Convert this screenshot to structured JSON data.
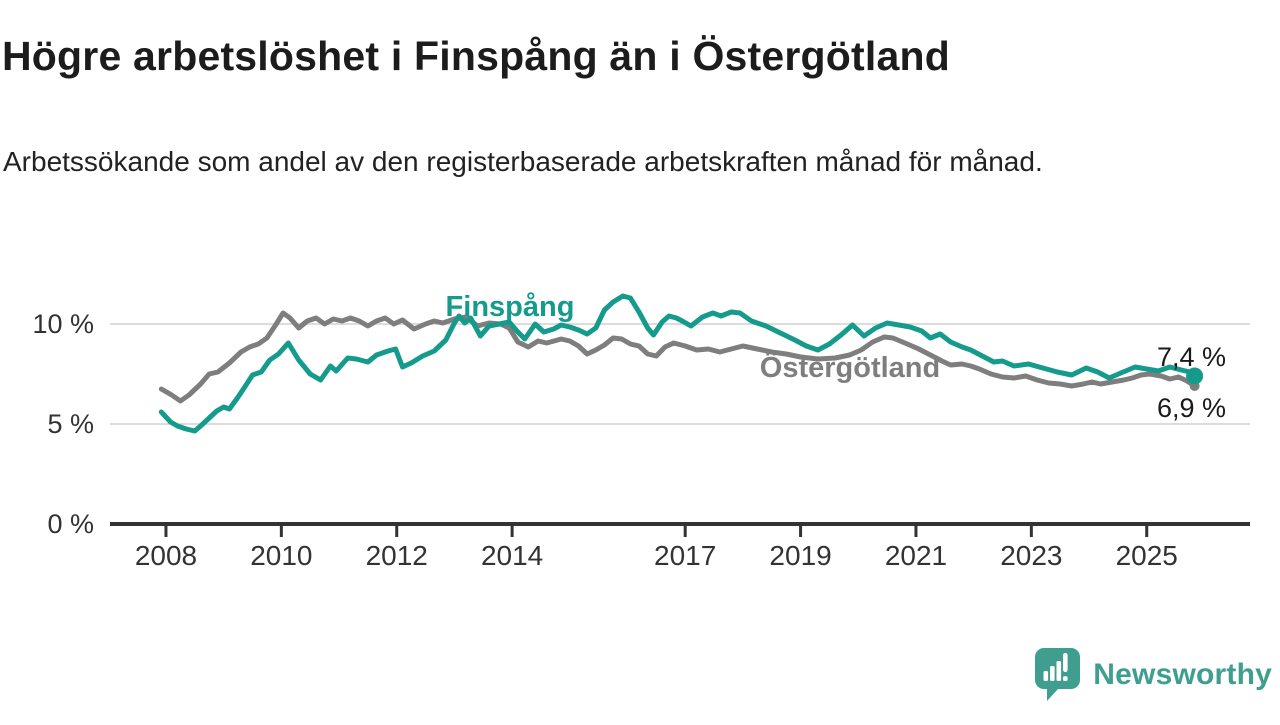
{
  "header": {
    "title": "Högre arbetslöshet i Finspång än i Östergötland",
    "subtitle": "Arbetssökande som andel av den registerbaserade arbetskraften månad för månad."
  },
  "footer": {
    "brand": "Newsworthy"
  },
  "chart_data": {
    "type": "line",
    "title": "Högre arbetslöshet i Finspång än i Östergötland",
    "subtitle": "Arbetssökande som andel av den registerbaserade arbetskraften månad för månad.",
    "x_unit": "year (decimal years, monthly observations)",
    "y_unit": "percent of registered labour force",
    "xlim": [
      2007.03,
      2026.79
    ],
    "ylim": [
      0,
      12.75
    ],
    "grid": "horizontal",
    "legend_position": "inline-labels",
    "colors": {
      "background": "#ffffff",
      "axis": "#333333",
      "grid": "#dcdcdc",
      "tick_text": "#333333",
      "value_text": "#1a1a1a",
      "accent_teal": "#149b8c",
      "neutral_gray": "#7e7e7e",
      "logo_teal": "#3f9e90"
    },
    "yticks": [
      {
        "value": 0,
        "label": "0 %"
      },
      {
        "value": 5,
        "label": "5 %"
      },
      {
        "value": 10,
        "label": "10 %"
      }
    ],
    "xticks": [
      {
        "value": 2008,
        "label": "2008"
      },
      {
        "value": 2010,
        "label": "2010"
      },
      {
        "value": 2012,
        "label": "2012"
      },
      {
        "value": 2014,
        "label": "2014"
      },
      {
        "value": 2017,
        "label": "2017"
      },
      {
        "value": 2019,
        "label": "2019"
      },
      {
        "value": 2021,
        "label": "2021"
      },
      {
        "value": 2023,
        "label": "2023"
      },
      {
        "value": 2025,
        "label": "2025"
      }
    ],
    "series": [
      {
        "name": "Östergötland",
        "color": "#7e7e7e",
        "line_width": 5,
        "end_value": 6.9,
        "end_label": "6,9 %",
        "end_dot_radius": 5,
        "points": [
          [
            2007.92,
            6.75
          ],
          [
            2008.1,
            6.45
          ],
          [
            2008.25,
            6.15
          ],
          [
            2008.4,
            6.45
          ],
          [
            2008.6,
            7.0
          ],
          [
            2008.75,
            7.5
          ],
          [
            2008.9,
            7.6
          ],
          [
            2009.1,
            8.05
          ],
          [
            2009.3,
            8.6
          ],
          [
            2009.45,
            8.85
          ],
          [
            2009.6,
            9.0
          ],
          [
            2009.75,
            9.3
          ],
          [
            2009.9,
            9.95
          ],
          [
            2010.03,
            10.55
          ],
          [
            2010.15,
            10.3
          ],
          [
            2010.3,
            9.8
          ],
          [
            2010.45,
            10.15
          ],
          [
            2010.6,
            10.3
          ],
          [
            2010.75,
            10.0
          ],
          [
            2010.9,
            10.25
          ],
          [
            2011.05,
            10.15
          ],
          [
            2011.2,
            10.3
          ],
          [
            2011.35,
            10.15
          ],
          [
            2011.5,
            9.9
          ],
          [
            2011.65,
            10.15
          ],
          [
            2011.8,
            10.3
          ],
          [
            2011.95,
            10.0
          ],
          [
            2012.1,
            10.2
          ],
          [
            2012.3,
            9.75
          ],
          [
            2012.5,
            10.0
          ],
          [
            2012.65,
            10.15
          ],
          [
            2012.8,
            10.05
          ],
          [
            2013.0,
            10.25
          ],
          [
            2013.2,
            10.35
          ],
          [
            2013.4,
            9.9
          ],
          [
            2013.6,
            10.05
          ],
          [
            2013.8,
            10.0
          ],
          [
            2013.95,
            9.8
          ],
          [
            2014.1,
            9.1
          ],
          [
            2014.28,
            8.85
          ],
          [
            2014.45,
            9.15
          ],
          [
            2014.6,
            9.05
          ],
          [
            2014.85,
            9.25
          ],
          [
            2015.0,
            9.15
          ],
          [
            2015.15,
            8.9
          ],
          [
            2015.3,
            8.5
          ],
          [
            2015.45,
            8.7
          ],
          [
            2015.6,
            8.95
          ],
          [
            2015.75,
            9.3
          ],
          [
            2015.9,
            9.25
          ],
          [
            2016.05,
            9.0
          ],
          [
            2016.2,
            8.9
          ],
          [
            2016.35,
            8.5
          ],
          [
            2016.5,
            8.4
          ],
          [
            2016.65,
            8.85
          ],
          [
            2016.8,
            9.05
          ],
          [
            2017.0,
            8.9
          ],
          [
            2017.2,
            8.7
          ],
          [
            2017.4,
            8.75
          ],
          [
            2017.6,
            8.6
          ],
          [
            2017.8,
            8.75
          ],
          [
            2018.0,
            8.9
          ],
          [
            2018.25,
            8.75
          ],
          [
            2018.5,
            8.6
          ],
          [
            2018.75,
            8.5
          ],
          [
            2019.0,
            8.35
          ],
          [
            2019.3,
            8.25
          ],
          [
            2019.6,
            8.3
          ],
          [
            2019.85,
            8.45
          ],
          [
            2020.05,
            8.7
          ],
          [
            2020.25,
            9.1
          ],
          [
            2020.45,
            9.35
          ],
          [
            2020.6,
            9.3
          ],
          [
            2020.85,
            9.0
          ],
          [
            2021.05,
            8.75
          ],
          [
            2021.25,
            8.45
          ],
          [
            2021.45,
            8.15
          ],
          [
            2021.6,
            7.95
          ],
          [
            2021.8,
            8.0
          ],
          [
            2021.95,
            7.9
          ],
          [
            2022.1,
            7.75
          ],
          [
            2022.3,
            7.5
          ],
          [
            2022.5,
            7.35
          ],
          [
            2022.7,
            7.3
          ],
          [
            2022.9,
            7.4
          ],
          [
            2023.1,
            7.2
          ],
          [
            2023.3,
            7.05
          ],
          [
            2023.5,
            7.0
          ],
          [
            2023.7,
            6.9
          ],
          [
            2023.9,
            7.0
          ],
          [
            2024.05,
            7.1
          ],
          [
            2024.2,
            7.0
          ],
          [
            2024.4,
            7.1
          ],
          [
            2024.6,
            7.2
          ],
          [
            2024.75,
            7.3
          ],
          [
            2024.9,
            7.45
          ],
          [
            2025.05,
            7.5
          ],
          [
            2025.25,
            7.4
          ],
          [
            2025.4,
            7.25
          ],
          [
            2025.55,
            7.35
          ],
          [
            2025.7,
            7.15
          ],
          [
            2025.83,
            6.9
          ]
        ]
      },
      {
        "name": "Finspång",
        "color": "#149b8c",
        "line_width": 5,
        "end_value": 7.4,
        "end_label": "7,4 %",
        "end_dot_radius": 8.5,
        "points": [
          [
            2007.92,
            5.6
          ],
          [
            2008.08,
            5.1
          ],
          [
            2008.2,
            4.9
          ],
          [
            2008.35,
            4.75
          ],
          [
            2008.5,
            4.65
          ],
          [
            2008.62,
            4.95
          ],
          [
            2008.75,
            5.3
          ],
          [
            2008.88,
            5.65
          ],
          [
            2009.0,
            5.85
          ],
          [
            2009.1,
            5.75
          ],
          [
            2009.25,
            6.35
          ],
          [
            2009.4,
            7.0
          ],
          [
            2009.5,
            7.45
          ],
          [
            2009.65,
            7.6
          ],
          [
            2009.8,
            8.2
          ],
          [
            2009.95,
            8.5
          ],
          [
            2010.12,
            9.05
          ],
          [
            2010.3,
            8.2
          ],
          [
            2010.5,
            7.5
          ],
          [
            2010.68,
            7.2
          ],
          [
            2010.85,
            7.9
          ],
          [
            2010.95,
            7.65
          ],
          [
            2011.15,
            8.3
          ],
          [
            2011.3,
            8.25
          ],
          [
            2011.5,
            8.1
          ],
          [
            2011.65,
            8.45
          ],
          [
            2011.85,
            8.65
          ],
          [
            2011.98,
            8.75
          ],
          [
            2012.1,
            7.85
          ],
          [
            2012.25,
            8.05
          ],
          [
            2012.45,
            8.4
          ],
          [
            2012.65,
            8.65
          ],
          [
            2012.85,
            9.2
          ],
          [
            2013.0,
            10.05
          ],
          [
            2013.08,
            10.4
          ],
          [
            2013.18,
            10.05
          ],
          [
            2013.28,
            10.3
          ],
          [
            2013.45,
            9.4
          ],
          [
            2013.6,
            9.9
          ],
          [
            2013.78,
            10.0
          ],
          [
            2013.95,
            10.1
          ],
          [
            2014.1,
            9.6
          ],
          [
            2014.22,
            9.25
          ],
          [
            2014.4,
            10.0
          ],
          [
            2014.55,
            9.6
          ],
          [
            2014.72,
            9.75
          ],
          [
            2014.85,
            9.95
          ],
          [
            2015.0,
            9.85
          ],
          [
            2015.15,
            9.7
          ],
          [
            2015.3,
            9.5
          ],
          [
            2015.45,
            9.8
          ],
          [
            2015.6,
            10.7
          ],
          [
            2015.75,
            11.1
          ],
          [
            2015.92,
            11.4
          ],
          [
            2016.05,
            11.3
          ],
          [
            2016.2,
            10.6
          ],
          [
            2016.35,
            9.8
          ],
          [
            2016.45,
            9.45
          ],
          [
            2016.6,
            10.1
          ],
          [
            2016.72,
            10.4
          ],
          [
            2016.85,
            10.3
          ],
          [
            2016.98,
            10.1
          ],
          [
            2017.1,
            9.9
          ],
          [
            2017.3,
            10.35
          ],
          [
            2017.48,
            10.55
          ],
          [
            2017.62,
            10.4
          ],
          [
            2017.8,
            10.6
          ],
          [
            2017.95,
            10.55
          ],
          [
            2018.15,
            10.15
          ],
          [
            2018.4,
            9.9
          ],
          [
            2018.65,
            9.55
          ],
          [
            2018.9,
            9.2
          ],
          [
            2019.1,
            8.9
          ],
          [
            2019.3,
            8.7
          ],
          [
            2019.5,
            9.0
          ],
          [
            2019.7,
            9.45
          ],
          [
            2019.9,
            9.95
          ],
          [
            2020.1,
            9.4
          ],
          [
            2020.3,
            9.8
          ],
          [
            2020.5,
            10.05
          ],
          [
            2020.7,
            9.95
          ],
          [
            2020.9,
            9.85
          ],
          [
            2021.1,
            9.65
          ],
          [
            2021.25,
            9.3
          ],
          [
            2021.42,
            9.5
          ],
          [
            2021.6,
            9.1
          ],
          [
            2021.8,
            8.85
          ],
          [
            2021.95,
            8.7
          ],
          [
            2022.15,
            8.4
          ],
          [
            2022.35,
            8.1
          ],
          [
            2022.5,
            8.15
          ],
          [
            2022.7,
            7.9
          ],
          [
            2022.95,
            8.0
          ],
          [
            2023.2,
            7.8
          ],
          [
            2023.45,
            7.6
          ],
          [
            2023.7,
            7.45
          ],
          [
            2023.95,
            7.8
          ],
          [
            2024.15,
            7.6
          ],
          [
            2024.35,
            7.3
          ],
          [
            2024.55,
            7.55
          ],
          [
            2024.8,
            7.85
          ],
          [
            2025.0,
            7.75
          ],
          [
            2025.2,
            7.65
          ],
          [
            2025.4,
            7.85
          ],
          [
            2025.6,
            7.7
          ],
          [
            2025.75,
            7.6
          ],
          [
            2025.83,
            7.4
          ]
        ]
      }
    ]
  }
}
